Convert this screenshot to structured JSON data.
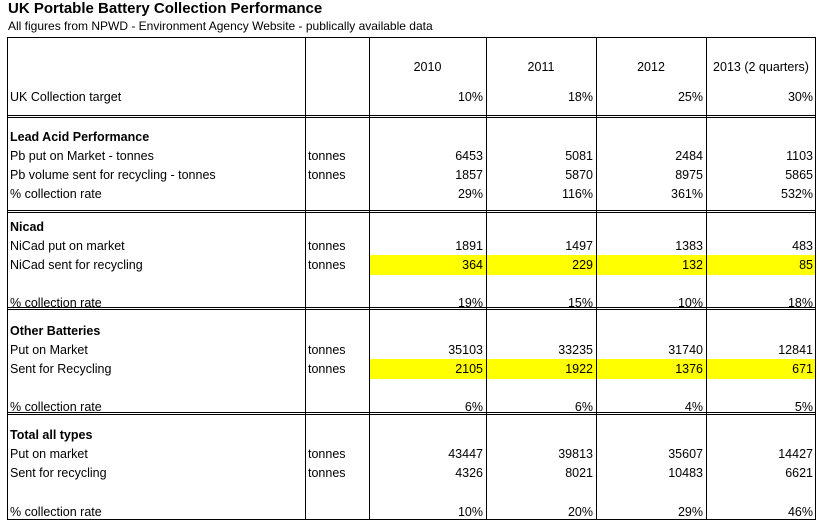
{
  "title": "UK Portable Battery Collection Performance",
  "subtitle": "All figures from NPWD - Environment Agency Website - publically available data",
  "years": [
    "2010",
    "2011",
    "2012",
    "2013 (2 quarters)"
  ],
  "rows": [
    {
      "label": "UK Collection target",
      "unit": "",
      "values": [
        "10%",
        "18%",
        "25%",
        "30%"
      ],
      "bold": false,
      "highlight": false
    },
    {
      "label": "Lead Acid Performance",
      "unit": "",
      "values": [
        "",
        "",
        "",
        ""
      ],
      "bold": true,
      "highlight": false
    },
    {
      "label": "Pb put on Market - tonnes",
      "unit": "tonnes",
      "values": [
        "6453",
        "5081",
        "2484",
        "1103"
      ],
      "bold": false,
      "highlight": false
    },
    {
      "label": "Pb volume sent for recycling - tonnes",
      "unit": "tonnes",
      "values": [
        "1857",
        "5870",
        "8975",
        "5865"
      ],
      "bold": false,
      "highlight": false
    },
    {
      "label": "% collection rate",
      "unit": "",
      "values": [
        "29%",
        "116%",
        "361%",
        "532%"
      ],
      "bold": false,
      "highlight": false
    },
    {
      "label": "Nicad",
      "unit": "",
      "values": [
        "",
        "",
        "",
        ""
      ],
      "bold": true,
      "highlight": false
    },
    {
      "label": "NiCad put on market",
      "unit": "tonnes",
      "values": [
        "1891",
        "1497",
        "1383",
        "483"
      ],
      "bold": false,
      "highlight": false
    },
    {
      "label": "NiCad sent for recycling",
      "unit": "tonnes",
      "values": [
        "364",
        "229",
        "132",
        "85"
      ],
      "bold": false,
      "highlight": true
    },
    {
      "label": "% collection rate",
      "unit": "",
      "values": [
        "19%",
        "15%",
        "10%",
        "18%"
      ],
      "bold": false,
      "highlight": false
    },
    {
      "label": "Other Batteries",
      "unit": "",
      "values": [
        "",
        "",
        "",
        ""
      ],
      "bold": true,
      "highlight": false
    },
    {
      "label": "Put on Market",
      "unit": "tonnes",
      "values": [
        "35103",
        "33235",
        "31740",
        "12841"
      ],
      "bold": false,
      "highlight": false
    },
    {
      "label": "Sent for Recycling",
      "unit": "tonnes",
      "values": [
        "2105",
        "1922",
        "1376",
        "671"
      ],
      "bold": false,
      "highlight": true
    },
    {
      "label": "% collection rate",
      "unit": "",
      "values": [
        "6%",
        "6%",
        "4%",
        "5%"
      ],
      "bold": false,
      "highlight": false
    },
    {
      "label": "Total all types",
      "unit": "",
      "values": [
        "",
        "",
        "",
        ""
      ],
      "bold": true,
      "highlight": false
    },
    {
      "label": "Put on market",
      "unit": "tonnes",
      "values": [
        "43447",
        "39813",
        "35607",
        "14427"
      ],
      "bold": false,
      "highlight": false
    },
    {
      "label": "Sent for recycling",
      "unit": "tonnes",
      "values": [
        "4326",
        "8021",
        "10483",
        "6621"
      ],
      "bold": false,
      "highlight": false
    },
    {
      "label": "% collection rate",
      "unit": "",
      "values": [
        "10%",
        "20%",
        "29%",
        "46%"
      ],
      "bold": false,
      "highlight": false
    }
  ],
  "colors": {
    "highlight": "#ffff00",
    "grid": "#000000",
    "inner_grid": "#9a9a9a"
  }
}
